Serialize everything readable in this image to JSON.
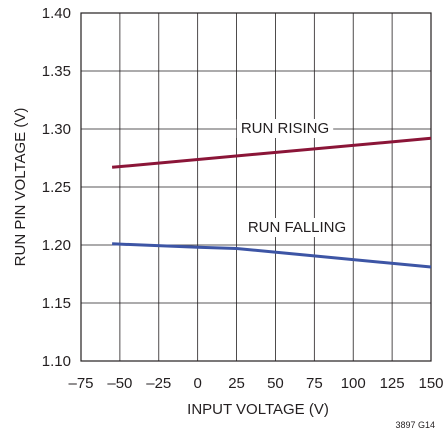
{
  "chart_data": {
    "type": "line",
    "xlabel": "INPUT VOLTAGE (V)",
    "ylabel": "RUN PIN VOLTAGE (V)",
    "xlim": [
      -75,
      150
    ],
    "ylim": [
      1.1,
      1.4
    ],
    "x_ticks": [
      "–75",
      "–50",
      "–25",
      "0",
      "25",
      "50",
      "75",
      "100",
      "125",
      "150"
    ],
    "y_ticks": [
      "1.10",
      "1.15",
      "1.20",
      "1.25",
      "1.30",
      "1.35",
      "1.40"
    ],
    "grid": true,
    "series": [
      {
        "name": "RUN RISING",
        "color": "#8b1538",
        "x": [
          -55,
          150
        ],
        "y": [
          1.267,
          1.292
        ]
      },
      {
        "name": "RUN FALLING",
        "color": "#3d55a5",
        "x": [
          -55,
          0,
          25,
          150
        ],
        "y": [
          1.201,
          1.198,
          1.197,
          1.181
        ]
      }
    ],
    "figure_id": "3897 G14"
  }
}
